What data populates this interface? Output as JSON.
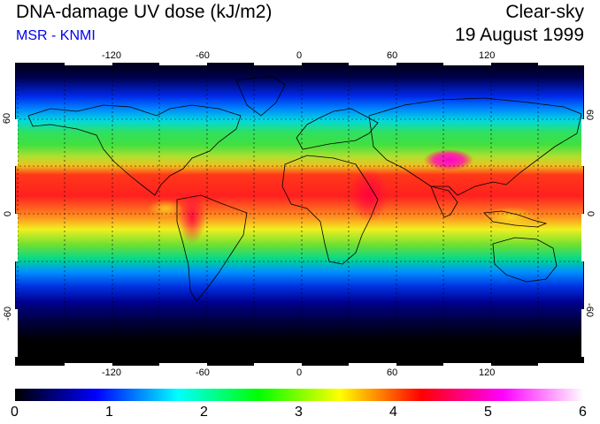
{
  "header": {
    "title": "DNA-damage UV dose (kJ/m2)",
    "source": "MSR - KNMI",
    "condition": "Clear-sky",
    "date": "19 August 1999"
  },
  "map": {
    "projection": "equirectangular",
    "grid": "dashed",
    "lon_ticks": [
      "-120",
      "-60",
      "0",
      "60",
      "120"
    ],
    "lat_ticks": [
      "60",
      "0",
      "-60"
    ],
    "coastlines": true
  },
  "colorbar": {
    "min": 0,
    "max": 6,
    "labels": [
      "0",
      "1",
      "2",
      "3",
      "4",
      "5",
      "6"
    ],
    "colors": [
      "#000000",
      "#0000ff",
      "#00ffff",
      "#00ff00",
      "#ffff00",
      "#ff0000",
      "#ff00ff",
      "#ffffff"
    ]
  },
  "colors": {
    "title_text": "#000000",
    "source_text": "#0000ee"
  }
}
